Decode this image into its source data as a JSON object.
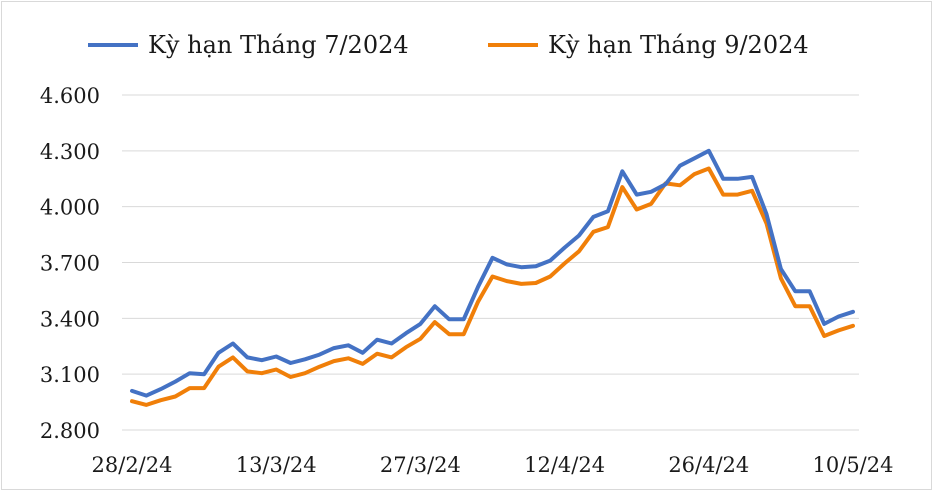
{
  "chart_data": {
    "type": "line",
    "title": "",
    "xlabel": "",
    "ylabel": "",
    "ylim": [
      2800,
      4600
    ],
    "yticks": [
      2800,
      3100,
      3400,
      3700,
      4000,
      4300,
      4600
    ],
    "ytick_labels": [
      "2.800",
      "3.100",
      "3.400",
      "3.700",
      "4.000",
      "4.300",
      "4.600"
    ],
    "xtick_labels": [
      "28/2/24",
      "13/3/24",
      "27/3/24",
      "12/4/24",
      "26/4/24",
      "10/5/24"
    ],
    "xtick_indices": [
      0,
      10,
      20,
      30,
      40,
      50
    ],
    "grid": "horizontal",
    "legend_position": "top",
    "series": [
      {
        "name": "Kỳ hạn Tháng 7/2024",
        "color": "#4472C4",
        "values": [
          3010,
          2985,
          3020,
          3060,
          3105,
          3100,
          3215,
          3265,
          3190,
          3175,
          3195,
          3160,
          3180,
          3205,
          3240,
          3255,
          3215,
          3285,
          3265,
          3320,
          3370,
          3465,
          3395,
          3395,
          3570,
          3725,
          3690,
          3675,
          3680,
          3710,
          3780,
          3845,
          3945,
          3975,
          4190,
          4065,
          4080,
          4120,
          4220,
          4260,
          4300,
          4150,
          4150,
          4160,
          3960,
          3665,
          3545,
          3545,
          3370,
          3410,
          3435
        ]
      },
      {
        "name": "Kỳ hạn Tháng 9/2024",
        "color": "#F07F09",
        "values": [
          2955,
          2935,
          2960,
          2980,
          3025,
          3025,
          3140,
          3190,
          3115,
          3105,
          3125,
          3085,
          3105,
          3140,
          3170,
          3185,
          3155,
          3210,
          3190,
          3245,
          3290,
          3380,
          3315,
          3315,
          3490,
          3625,
          3600,
          3585,
          3590,
          3625,
          3695,
          3760,
          3865,
          3890,
          4105,
          3985,
          4015,
          4125,
          4115,
          4175,
          4205,
          4065,
          4065,
          4085,
          3910,
          3615,
          3465,
          3465,
          3305,
          3335,
          3360
        ]
      }
    ]
  }
}
